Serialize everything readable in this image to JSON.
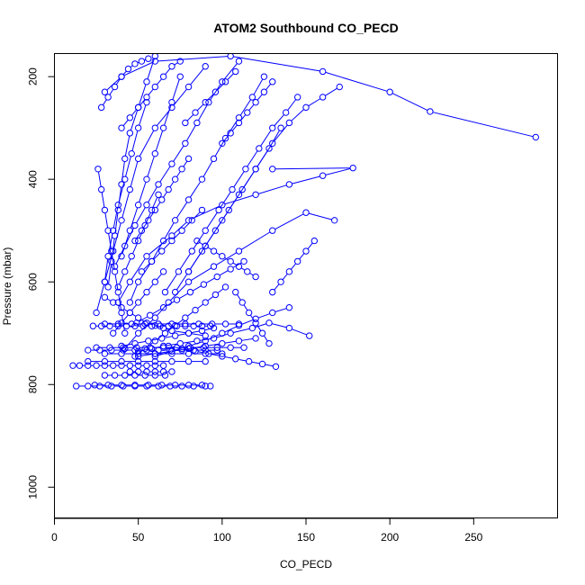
{
  "chart_data": {
    "type": "line",
    "title": "ATOM2 Southbound CO_PECD",
    "xlabel": "CO_PECD",
    "ylabel": "Pressure (mbar)",
    "xlim": [
      0,
      300
    ],
    "ylim": [
      1060,
      155
    ],
    "y_reversed": true,
    "grid": false,
    "series_color": "#0000ff",
    "marker": "open-circle",
    "x_ticks": [
      0,
      50,
      100,
      150,
      200,
      250
    ],
    "y_ticks": [
      200,
      400,
      600,
      800,
      1000
    ],
    "series": [
      {
        "x": [
          287,
          224,
          200,
          160,
          105,
          60,
          40,
          30
        ],
        "y": [
          318,
          268,
          230,
          190,
          160,
          170,
          200,
          230
        ]
      },
      {
        "x": [
          130,
          178,
          160,
          140,
          120,
          100,
          80,
          70,
          55,
          45,
          38
        ],
        "y": [
          380,
          378,
          393,
          410,
          430,
          450,
          480,
          510,
          550,
          600,
          640
        ]
      },
      {
        "x": [
          167,
          150,
          130,
          110,
          95,
          80,
          68,
          60,
          50,
          42
        ],
        "y": [
          480,
          465,
          500,
          540,
          570,
          600,
          640,
          670,
          700,
          730
        ]
      },
      {
        "x": [
          152,
          140,
          128,
          118,
          105,
          95,
          85,
          75,
          65,
          58,
          50
        ],
        "y": [
          705,
          690,
          680,
          690,
          700,
          710,
          715,
          720,
          725,
          730,
          735
        ]
      },
      {
        "x": [
          140,
          130,
          120,
          110,
          100,
          90,
          80,
          70,
          60
        ],
        "y": [
          650,
          660,
          672,
          685,
          700,
          715,
          725,
          735,
          745
        ]
      },
      {
        "x": [
          170,
          160,
          150,
          140,
          130,
          120,
          110,
          100,
          90,
          80
        ],
        "y": [
          220,
          240,
          260,
          290,
          330,
          380,
          430,
          480,
          530,
          580
        ]
      },
      {
        "x": [
          90,
          80,
          70,
          60,
          50,
          45,
          40,
          35,
          30,
          25
        ],
        "y": [
          180,
          220,
          260,
          300,
          360,
          420,
          480,
          540,
          600,
          660
        ]
      },
      {
        "x": [
          125,
          118,
          110,
          102,
          95,
          88,
          80,
          72,
          65,
          58,
          50,
          45
        ],
        "y": [
          200,
          240,
          280,
          320,
          360,
          400,
          440,
          480,
          520,
          560,
          600,
          640
        ]
      },
      {
        "x": [
          60,
          55,
          50,
          45,
          42,
          40,
          38,
          36,
          34,
          32
        ],
        "y": [
          160,
          210,
          260,
          310,
          360,
          410,
          460,
          510,
          560,
          610
        ]
      },
      {
        "x": [
          30,
          35,
          40,
          45,
          50,
          55,
          60,
          65,
          70,
          80,
          90
        ],
        "y": [
          630,
          640,
          650,
          660,
          670,
          680,
          685,
          690,
          695,
          700,
          705
        ]
      },
      {
        "x": [
          110,
          100,
          92,
          85,
          78,
          70,
          62,
          55,
          48,
          42,
          36
        ],
        "y": [
          170,
          210,
          250,
          290,
          330,
          370,
          410,
          450,
          490,
          530,
          570
        ]
      },
      {
        "x": [
          135,
          128,
          120,
          112,
          104,
          96,
          88,
          80,
          72
        ],
        "y": [
          300,
          340,
          380,
          420,
          460,
          500,
          540,
          580,
          620
        ]
      },
      {
        "x": [
          75,
          70,
          65,
          60,
          55,
          50,
          45,
          40
        ],
        "y": [
          200,
          250,
          300,
          350,
          400,
          450,
          500,
          550
        ]
      },
      {
        "x": [
          145,
          138,
          130,
          122,
          114,
          106,
          98,
          90,
          82,
          74,
          66
        ],
        "y": [
          240,
          270,
          300,
          340,
          380,
          420,
          460,
          500,
          540,
          580,
          620
        ]
      },
      {
        "x": [
          26,
          28,
          30,
          32,
          34,
          36,
          38,
          40,
          42
        ],
        "y": [
          380,
          420,
          460,
          500,
          540,
          580,
          620,
          660,
          700
        ]
      },
      {
        "x": [
          55,
          50,
          46,
          42,
          38,
          35,
          32,
          30
        ],
        "y": [
          250,
          300,
          350,
          400,
          450,
          500,
          550,
          600
        ]
      },
      {
        "x": [
          100,
          105,
          110,
          115,
          120,
          125,
          130
        ],
        "y": [
          330,
          310,
          290,
          270,
          250,
          230,
          210
        ]
      },
      {
        "x": [
          85,
          90,
          95,
          100,
          105,
          110,
          115,
          120
        ],
        "y": [
          520,
          530,
          540,
          550,
          560,
          570,
          580,
          590
        ]
      },
      {
        "x": [
          48,
          52,
          56,
          60,
          64,
          68,
          72,
          76,
          80
        ],
        "y": [
          520,
          500,
          480,
          460,
          440,
          420,
          400,
          380,
          360
        ]
      },
      {
        "x": [
          23,
          28,
          33,
          38,
          43,
          48,
          53,
          58,
          63,
          68,
          73,
          78,
          83,
          88,
          93
        ],
        "y": [
          686,
          686,
          686,
          686,
          686,
          686,
          686,
          686,
          686,
          686,
          686,
          686,
          686,
          686,
          686
        ]
      },
      {
        "x": [
          30,
          38,
          46,
          54,
          62,
          70,
          78,
          86,
          94,
          102,
          110
        ],
        "y": [
          682,
          682,
          682,
          682,
          682,
          682,
          682,
          682,
          682,
          682,
          682
        ]
      },
      {
        "x": [
          20,
          27,
          34,
          41,
          48,
          55,
          62,
          69,
          76,
          83,
          90,
          97
        ],
        "y": [
          733,
          733,
          733,
          733,
          733,
          733,
          733,
          733,
          733,
          733,
          733,
          733
        ]
      },
      {
        "x": [
          25,
          33,
          41,
          49,
          57,
          65,
          73,
          81,
          89,
          97,
          105,
          113
        ],
        "y": [
          728,
          728,
          728,
          728,
          728,
          728,
          728,
          728,
          728,
          728,
          728,
          728
        ]
      },
      {
        "x": [
          30,
          40,
          50,
          60,
          70,
          80,
          90,
          100
        ],
        "y": [
          740,
          740,
          740,
          740,
          740,
          740,
          740,
          740
        ]
      },
      {
        "x": [
          11,
          15,
          20,
          25,
          30,
          35,
          40,
          45,
          50,
          55,
          60,
          65
        ],
        "y": [
          763,
          763,
          763,
          763,
          763,
          763,
          763,
          763,
          763,
          763,
          763,
          763
        ]
      },
      {
        "x": [
          20,
          30,
          40,
          50,
          60,
          70,
          80,
          90
        ],
        "y": [
          755,
          755,
          755,
          755,
          755,
          755,
          755,
          755
        ]
      },
      {
        "x": [
          45,
          50,
          55,
          60,
          65,
          70
        ],
        "y": [
          775,
          775,
          775,
          775,
          775,
          775
        ]
      },
      {
        "x": [
          30,
          36,
          42,
          48,
          54,
          60,
          66
        ],
        "y": [
          782,
          782,
          782,
          782,
          782,
          782,
          782
        ]
      },
      {
        "x": [
          13,
          20,
          27,
          34,
          41,
          48,
          55,
          62,
          69,
          76,
          83,
          90,
          93
        ],
        "y": [
          803,
          803,
          803,
          803,
          803,
          803,
          803,
          803,
          803,
          803,
          803,
          803,
          803
        ]
      },
      {
        "x": [
          24,
          32,
          40,
          48,
          56,
          64,
          72,
          80,
          88
        ],
        "y": [
          801,
          801,
          801,
          801,
          801,
          801,
          801,
          801,
          801
        ]
      },
      {
        "x": [
          120,
          110,
          100,
          90,
          80,
          70,
          60,
          50
        ],
        "y": [
          710,
          715,
          720,
          725,
          730,
          735,
          740,
          745
        ]
      },
      {
        "x": [
          132,
          124,
          116,
          108,
          100,
          92,
          84,
          76,
          68
        ],
        "y": [
          765,
          760,
          755,
          750,
          745,
          740,
          735,
          730,
          725
        ]
      },
      {
        "x": [
          95,
          88,
          80,
          72,
          64,
          56,
          48,
          40
        ],
        "y": [
          690,
          695,
          700,
          705,
          710,
          715,
          720,
          725
        ]
      },
      {
        "x": [
          65,
          60,
          55,
          50,
          45,
          40,
          35
        ],
        "y": [
          580,
          600,
          620,
          640,
          660,
          680,
          700
        ]
      },
      {
        "x": [
          113,
          105,
          97,
          89,
          81,
          73,
          65,
          57,
          49
        ],
        "y": [
          560,
          575,
          590,
          605,
          620,
          635,
          650,
          665,
          680
        ]
      },
      {
        "x": [
          40,
          45,
          50,
          55,
          60,
          65,
          70,
          75
        ],
        "y": [
          300,
          280,
          260,
          240,
          220,
          200,
          180,
          170
        ]
      },
      {
        "x": [
          108,
          112,
          116,
          120,
          124,
          128
        ],
        "y": [
          620,
          640,
          660,
          680,
          700,
          720
        ]
      },
      {
        "x": [
          102,
          96,
          90,
          84,
          78,
          72,
          66,
          60,
          54,
          48
        ],
        "y": [
          610,
          625,
          640,
          655,
          670,
          685,
          700,
          715,
          730,
          745
        ]
      },
      {
        "x": [
          28,
          32,
          36,
          40,
          44,
          48,
          52,
          56
        ],
        "y": [
          260,
          240,
          220,
          200,
          185,
          175,
          170,
          165
        ]
      },
      {
        "x": [
          78,
          84,
          90,
          96,
          102,
          108
        ],
        "y": [
          290,
          270,
          250,
          230,
          210,
          190
        ]
      },
      {
        "x": [
          155,
          150,
          145,
          140,
          135,
          130
        ],
        "y": [
          520,
          540,
          560,
          580,
          600,
          620
        ]
      },
      {
        "x": [
          62,
          58,
          54,
          50,
          46,
          42,
          38
        ],
        "y": [
          430,
          460,
          490,
          520,
          550,
          580,
          610
        ]
      },
      {
        "x": [
          88,
          82,
          76,
          70,
          64,
          58,
          52
        ],
        "y": [
          460,
          480,
          500,
          520,
          540,
          560,
          580
        ]
      }
    ]
  }
}
